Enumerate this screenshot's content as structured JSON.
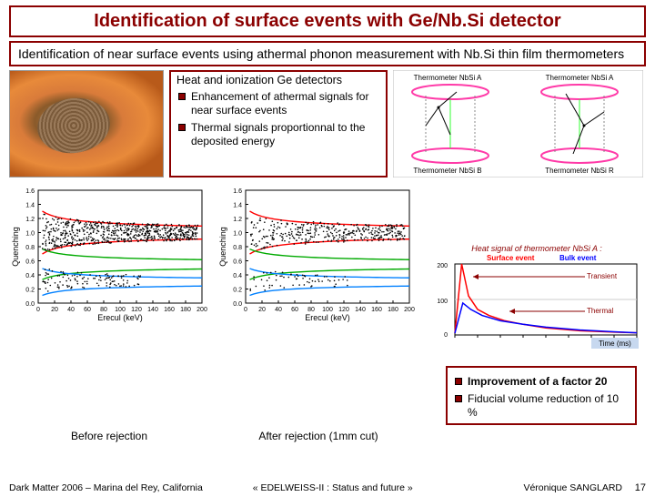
{
  "title": "Identification of surface events with Ge/Nb.Si detector",
  "subtitle": "Identification of near surface events using athermal phonon measurement with Nb.Si thin film thermometers",
  "heat_box": {
    "header": "Heat and ionization Ge detectors",
    "bullets": [
      "Enhancement of athermal signals for near surface events",
      "Thermal signals proportionnal to the deposited energy"
    ]
  },
  "schematic": {
    "labels": {
      "tl": "Thermometer NbSi A",
      "tr": "Thermometer NbSi A",
      "bl": "Thermometer NbSi B",
      "br": "Thermometer NbSi R"
    },
    "ring_color": "#ff3aa8",
    "guard_color": "#33ff33"
  },
  "heat_signal_plot": {
    "title_html": "Heat signal of thermometer NbSi A :",
    "legend": {
      "surface": "Surface event",
      "bulk": "Bulk event",
      "transient": "Transient",
      "thermal": "Thermal"
    },
    "ylim": [
      0,
      200
    ],
    "ytick_step": 100,
    "xlim": [
      0,
      8
    ],
    "xtick_step": 1,
    "xlabel": "Time (ms)",
    "curve_surface_color": "#ff0000",
    "curve_bulk_color": "#0000ff",
    "surface_curve": [
      [
        0,
        5
      ],
      [
        0.3,
        200
      ],
      [
        0.6,
        110
      ],
      [
        1,
        72
      ],
      [
        1.5,
        55
      ],
      [
        2.2,
        40
      ],
      [
        3,
        30
      ],
      [
        4,
        20
      ],
      [
        5.5,
        12
      ],
      [
        7,
        8
      ],
      [
        8,
        6
      ]
    ],
    "bulk_curve": [
      [
        0,
        5
      ],
      [
        0.35,
        90
      ],
      [
        0.7,
        72
      ],
      [
        1.2,
        55
      ],
      [
        2,
        40
      ],
      [
        3,
        30
      ],
      [
        4,
        22
      ],
      [
        5.5,
        14
      ],
      [
        7,
        9
      ],
      [
        8,
        6
      ]
    ]
  },
  "quench_before": {
    "caption": "Before rejection",
    "xlabel": "Erecul (keV)",
    "ylabel": "Quenching",
    "xlim": [
      0,
      200
    ],
    "ylim": [
      0,
      1.6
    ],
    "xtick_step": 20,
    "ytick_step": 0.2,
    "band_colors": {
      "gamma": "#ff0000",
      "nr": "#0080ff",
      "mid": "#00aa00"
    },
    "points_color": "#000"
  },
  "quench_after": {
    "caption": "After rejection   (1mm cut)",
    "xlabel": "Erecul (keV)",
    "ylabel": "Quenching",
    "xlim": [
      0,
      200
    ],
    "ylim": [
      0,
      1.6
    ],
    "xtick_step": 20,
    "ytick_step": 0.2,
    "band_colors": {
      "gamma": "#ff0000",
      "nr": "#0080ff",
      "mid": "#00aa00"
    },
    "points_color": "#000"
  },
  "result_box": {
    "bullets": [
      {
        "text": "Improvement of a factor 20",
        "bold": true
      },
      {
        "text": "Fiducial volume reduction of 10 %",
        "bold": false
      }
    ]
  },
  "footer": {
    "left": "Dark Matter 2006 – Marina del Rey, California",
    "center": "« EDELWEISS-II : Status and future »",
    "right": "Véronique SANGLARD",
    "page": "17"
  }
}
